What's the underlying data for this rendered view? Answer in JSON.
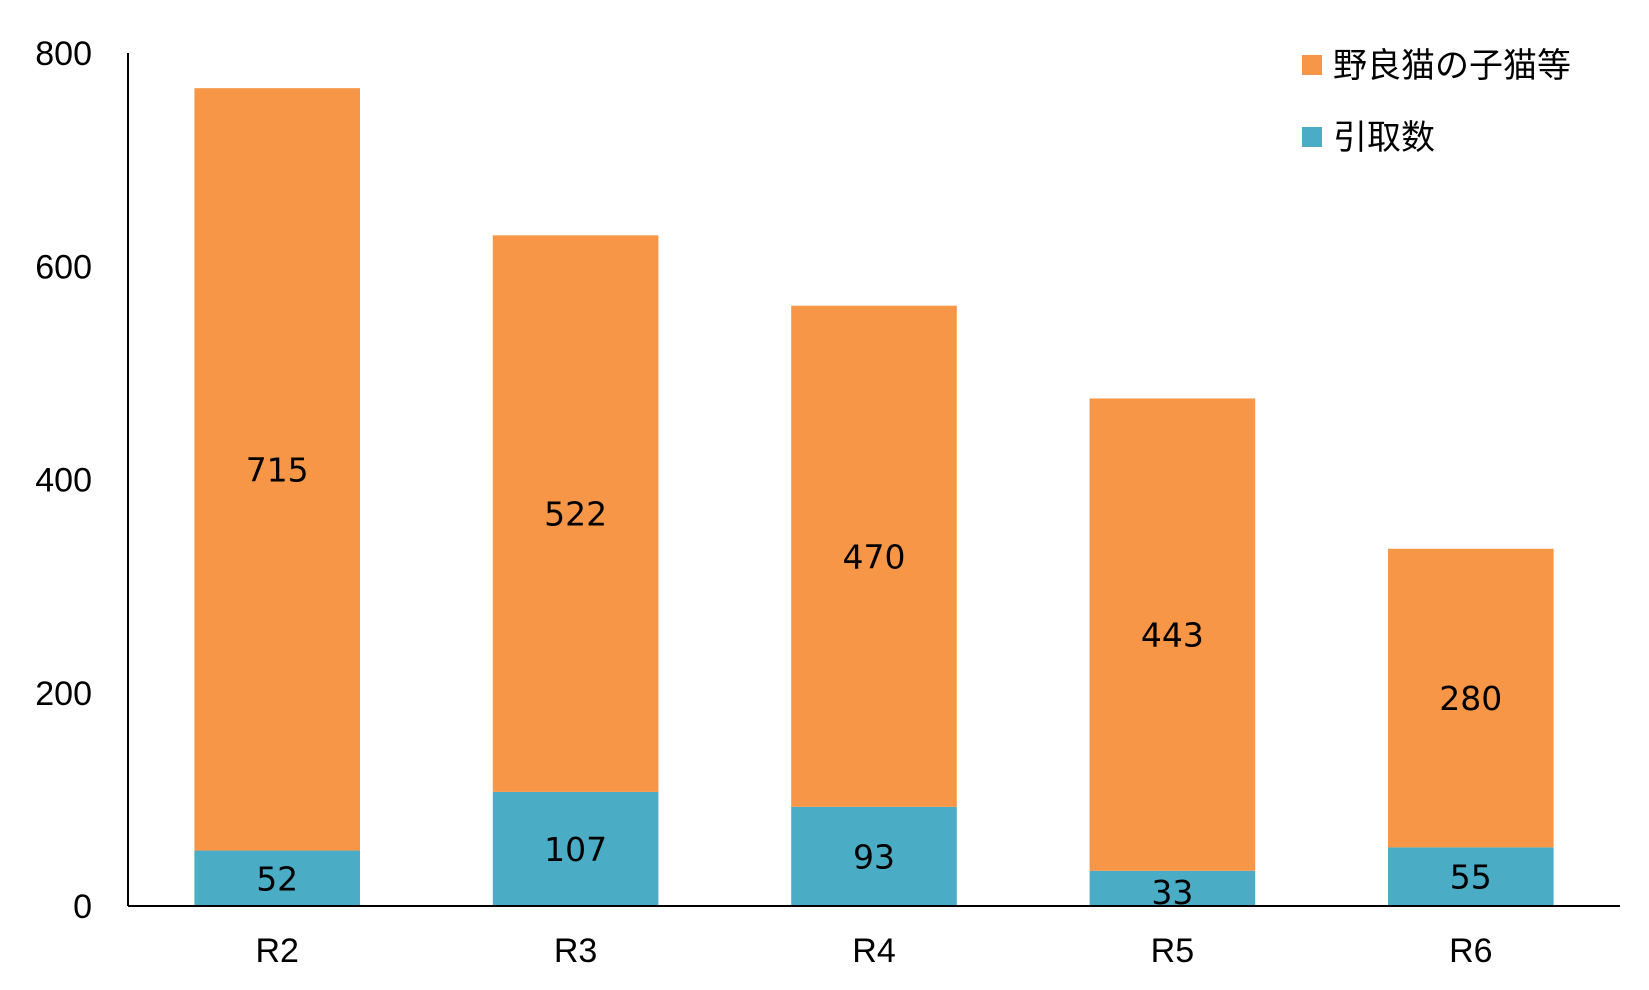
{
  "chart_data": {
    "type": "bar",
    "stacked": true,
    "categories": [
      "R2",
      "R3",
      "R4",
      "R5",
      "R6"
    ],
    "series": [
      {
        "name": "引取数",
        "values": [
          52,
          107,
          93,
          33,
          55
        ],
        "color": "#4bacc6"
      },
      {
        "name": "野良猫の子猫等",
        "values": [
          715,
          522,
          470,
          443,
          280
        ],
        "color": "#f79646"
      }
    ],
    "ylim": [
      0,
      800
    ],
    "yticks": [
      "0",
      "200",
      "400",
      "600",
      "800"
    ],
    "grid": false,
    "legend": "top-right",
    "data_labels": true
  }
}
